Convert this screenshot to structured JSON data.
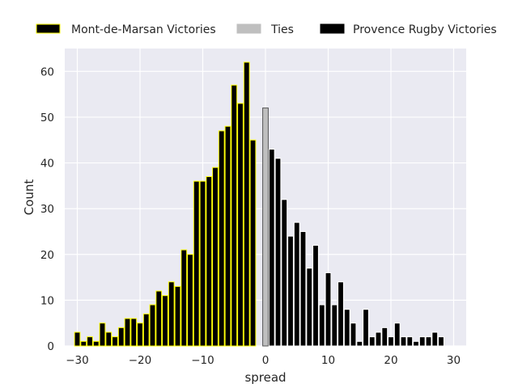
{
  "chart_data": {
    "type": "bar",
    "title": "",
    "xlabel": "spread",
    "ylabel": "Count",
    "xlim": [
      -32,
      32
    ],
    "ylim": [
      0,
      65
    ],
    "xticks": [
      -30,
      -20,
      -10,
      0,
      10,
      20,
      30
    ],
    "yticks": [
      0,
      10,
      20,
      30,
      40,
      50,
      60
    ],
    "grid": true,
    "legend_position": "top",
    "series": [
      {
        "name": "Mont-de-Marsan Victories",
        "color": "#000000",
        "edge_color": "#ffff00",
        "x": [
          -30,
          -29,
          -28,
          -27,
          -26,
          -25,
          -24,
          -23,
          -22,
          -21,
          -20,
          -19,
          -18,
          -17,
          -16,
          -15,
          -14,
          -13,
          -12,
          -11,
          -10,
          -9,
          -8,
          -7,
          -6,
          -5,
          -4,
          -3,
          -2,
          -1
        ],
        "values": [
          3,
          1,
          2,
          1,
          5,
          3,
          2,
          4,
          6,
          6,
          5,
          7,
          9,
          12,
          11,
          14,
          13,
          21,
          20,
          36,
          36,
          37,
          39,
          47,
          48,
          57,
          53,
          62,
          45,
          0
        ]
      },
      {
        "name": "Ties",
        "color": "#bfbfbf",
        "edge_color": "#555555",
        "x": [
          0
        ],
        "values": [
          52
        ]
      },
      {
        "name": "Provence Rugby Victories",
        "color": "#000000",
        "edge_color": "#ffffff",
        "x": [
          1,
          2,
          3,
          4,
          5,
          6,
          7,
          8,
          9,
          10,
          11,
          12,
          13,
          14,
          15,
          16,
          17,
          18,
          19,
          20,
          21,
          22,
          23,
          24,
          25,
          26,
          27,
          28,
          29
        ],
        "values": [
          43,
          41,
          32,
          24,
          27,
          25,
          17,
          22,
          9,
          16,
          9,
          14,
          8,
          5,
          1,
          8,
          2,
          3,
          4,
          2,
          5,
          2,
          2,
          1,
          2,
          2,
          3,
          2,
          0
        ]
      }
    ]
  }
}
